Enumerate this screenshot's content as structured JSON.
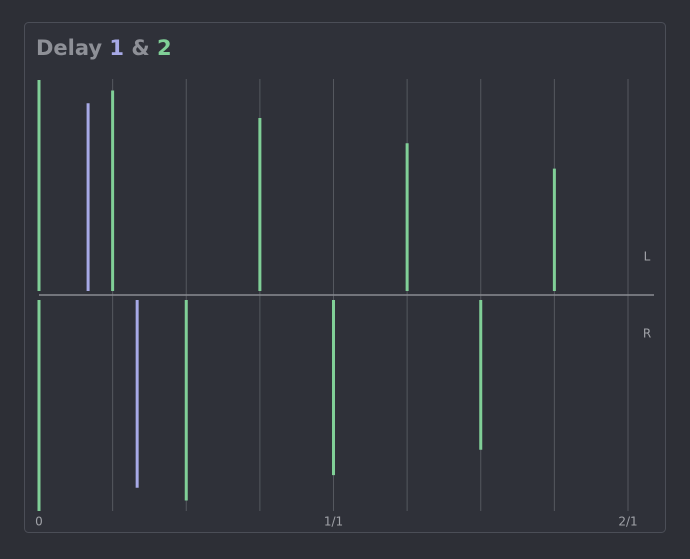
{
  "chart_data": {
    "type": "delay",
    "title": "Delay",
    "conjunction": "&",
    "channels": [
      "L",
      "R"
    ],
    "xlim": [
      0,
      2
    ],
    "ylim": [
      0,
      1
    ],
    "xticks": [
      0,
      {
        "value": 1,
        "label": "1/1"
      },
      {
        "value": 2,
        "label": "2/1"
      }
    ],
    "xgrid": [
      0.25,
      0.5,
      0.75,
      1,
      1.25,
      1.5,
      1.75,
      2
    ],
    "grid": true,
    "series": [
      {
        "name": "1",
        "color": "#a7a9e6",
        "channels": [
          {
            "x": [
              0.1667
            ],
            "values": [
              0.89
            ]
          },
          {
            "x": [
              0.3333
            ],
            "values": [
              0.89
            ]
          }
        ]
      },
      {
        "name": "2",
        "color": "#80cf97",
        "channels": [
          {
            "x": [
              0,
              0.25,
              0.75,
              1.25,
              1.75
            ],
            "values": [
              1,
              0.95,
              0.82,
              0.7,
              0.58
            ]
          },
          {
            "x": [
              0,
              0.5,
              1,
              1.5
            ],
            "values": [
              1,
              0.95,
              0.83,
              0.71
            ]
          }
        ]
      }
    ]
  }
}
